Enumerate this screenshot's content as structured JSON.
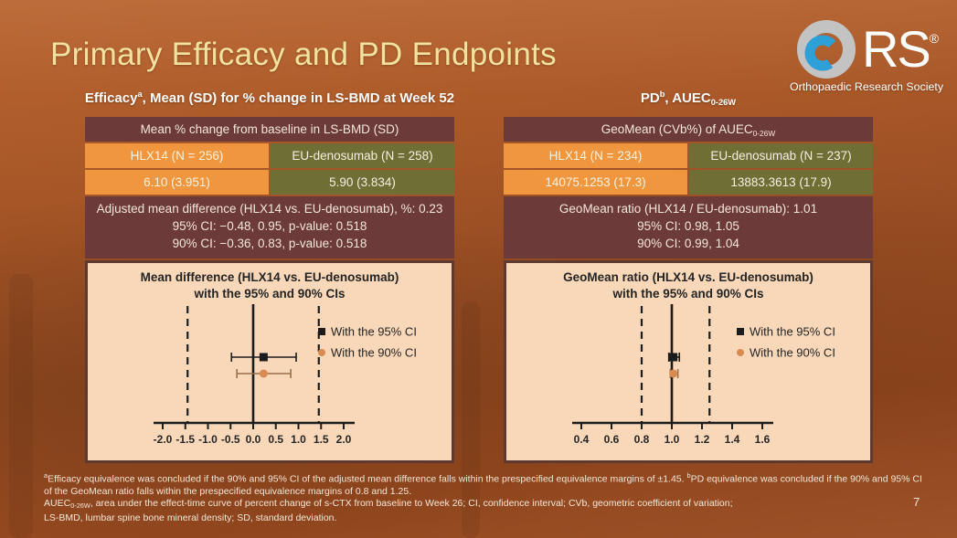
{
  "slide": {
    "title": "Primary Efficacy and PD Endpoints",
    "page_number": "7"
  },
  "logo": {
    "name": "ORS",
    "rs_text": "RS",
    "reg_mark": "®",
    "subtitle": "Orthopaedic Research Society"
  },
  "colors": {
    "title_accent": "#F2E2A0",
    "maroon_block": "#6C3A38",
    "orange_cell": "#F0963E",
    "olive_cell": "#6F6E35",
    "plot_background": "#F9D8BA",
    "plot_border": "#5D392F",
    "marker_95ci": "#1C1C1C",
    "marker_90ci": "#D98C52",
    "logo_blue": "#2DA0D8"
  },
  "rich": {
    "left_heading": [
      {
        "t": "Efficacy"
      },
      {
        "t": "a",
        "sup": true
      },
      {
        "t": ", Mean (SD) for % change in LS-BMD at Week 52"
      }
    ],
    "right_heading": [
      {
        "t": "PD"
      },
      {
        "t": "b",
        "sup": true
      },
      {
        "t": ", AUEC"
      },
      {
        "t": "0-26W",
        "sub": true
      }
    ],
    "right_table_header": [
      {
        "t": "GeoMean (CVb%) of AUEC"
      },
      {
        "t": "0-26W",
        "sub": true
      }
    ],
    "footnote_line1": [
      {
        "t": "a",
        "sup": true
      },
      {
        "t": "Efficacy equivalence was concluded if the 90% and 95% CI of the adjusted mean difference falls within the prespecified equivalence margins of ±1.45. "
      },
      {
        "t": "b",
        "sup": true
      },
      {
        "t": "PD equivalence was concluded if the 90% and 95% CI"
      }
    ],
    "footnote_line2": [
      {
        "t": "of the GeoMean ratio falls within the prespecified equivalence margins of 0.8 and 1.25."
      }
    ],
    "footnote_line3": [
      {
        "t": "AUEC"
      },
      {
        "t": "0-26W",
        "sub": true
      },
      {
        "t": ", area under the effect-time curve of percent change of s-CTX from baseline to Week 26; CI, confidence interval; CVb, geometric coefficient of variation;"
      }
    ],
    "footnote_line4": [
      {
        "t": "LS-BMD, lumbar spine bone mineral density; SD, standard deviation."
      }
    ]
  },
  "left_panel": {
    "table": {
      "header": "Mean % change from baseline in LS-BMD (SD)",
      "columns": [
        {
          "label": "HLX14 (N = 256)",
          "value": "6.10 (3.951)"
        },
        {
          "label": "EU-denosumab (N = 258)",
          "value": "5.90 (3.834)"
        }
      ]
    },
    "stats": {
      "line1": "Adjusted mean difference (HLX14 vs. EU-denosumab), %: 0.23",
      "line2": "95% CI: −0.48, 0.95, p-value: 0.518",
      "line3": "90% CI: −0.36, 0.83, p-value: 0.518"
    }
  },
  "right_panel": {
    "table": {
      "columns": [
        {
          "label": "HLX14 (N = 234)",
          "value": "14075.1253 (17.3)"
        },
        {
          "label": "EU-denosumab (N = 237)",
          "value": "13883.3613 (17.9)"
        }
      ]
    },
    "stats": {
      "line1": "GeoMean ratio (HLX14 / EU-denosumab): 1.01",
      "line2": "95% CI: 0.98, 1.05",
      "line3": "90% CI: 0.99, 1.04"
    }
  },
  "chart_data": [
    {
      "type": "forest",
      "panel": "efficacy",
      "title_line1": "Mean difference (HLX14 vs. EU-denosumab)",
      "title_line2": "with the 95% and 90% CIs",
      "x_ticks": [
        -2.0,
        -1.5,
        -1.0,
        -0.5,
        0.0,
        0.5,
        1.0,
        1.5,
        2.0
      ],
      "xlim": [
        -2.25,
        2.25
      ],
      "ref_line_solid": 0.0,
      "ref_lines_dashed": [
        -1.45,
        1.45
      ],
      "grid": false,
      "legend_position": "right",
      "series": [
        {
          "name": "With the 95% CI",
          "marker": "square",
          "color": "#1C1C1C",
          "line_color": "#1C1C1C",
          "estimate": 0.23,
          "ci_lower": -0.48,
          "ci_upper": 0.95
        },
        {
          "name": "With the 90% CI",
          "marker": "circle",
          "color": "#D98C52",
          "line_color": "#9A6F4B",
          "estimate": 0.23,
          "ci_lower": -0.36,
          "ci_upper": 0.83
        }
      ]
    },
    {
      "type": "forest",
      "panel": "pd",
      "title_line1": "GeoMean ratio (HLX14 vs. EU-denosumab)",
      "title_line2": "with the 95% and 90% CIs",
      "x_ticks": [
        0.4,
        0.6,
        0.8,
        1.0,
        1.2,
        1.4,
        1.6
      ],
      "xlim": [
        0.3,
        1.7
      ],
      "ref_line_solid": 1.0,
      "ref_lines_dashed": [
        0.8,
        1.25
      ],
      "grid": false,
      "legend_position": "right",
      "series": [
        {
          "name": "With the 95% CI",
          "marker": "square",
          "color": "#1C1C1C",
          "line_color": "#1C1C1C",
          "estimate": 1.01,
          "ci_lower": 0.98,
          "ci_upper": 1.05
        },
        {
          "name": "With the 90% CI",
          "marker": "circle",
          "color": "#D98C52",
          "line_color": "#9A6F4B",
          "estimate": 1.01,
          "ci_lower": 0.99,
          "ci_upper": 1.04
        }
      ]
    }
  ]
}
